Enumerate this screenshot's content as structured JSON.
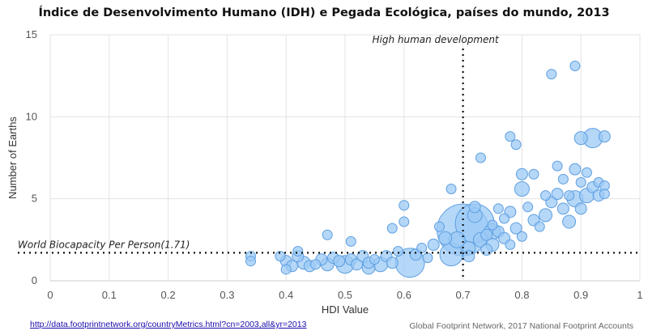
{
  "chart_data": {
    "type": "scatter",
    "title": "Índice de Desenvolvimento Humano (IDH) e Pegada Ecológica, países do mundo, 2013",
    "xlabel": "HDI Value",
    "ylabel": "Number of Earths",
    "xlim": [
      0,
      1
    ],
    "ylim": [
      0,
      15
    ],
    "x_ticks": [
      "0",
      "0.1",
      "0.2",
      "0.3",
      "0.4",
      "0.5",
      "0.6",
      "0.7",
      "0.8",
      "0.9",
      "1"
    ],
    "y_ticks": [
      "0",
      "5",
      "10",
      "15"
    ],
    "grid": true,
    "legend": "none",
    "bubble_color": "#9cc9f5",
    "bubble_edge": "#5e9fe0",
    "reference_lines": {
      "vertical": {
        "x": 0.7,
        "label": "High human development"
      },
      "horizontal": {
        "y": 1.71,
        "label": "World Biocapacity Per Person(1.71)"
      }
    },
    "points": [
      [
        0.34,
        1.5,
        6
      ],
      [
        0.34,
        1.2,
        6
      ],
      [
        0.39,
        1.5,
        6
      ],
      [
        0.4,
        0.7,
        6
      ],
      [
        0.4,
        1.2,
        7
      ],
      [
        0.41,
        0.9,
        7
      ],
      [
        0.42,
        1.5,
        7
      ],
      [
        0.42,
        1.8,
        6
      ],
      [
        0.43,
        1.1,
        8
      ],
      [
        0.44,
        0.9,
        7
      ],
      [
        0.45,
        1.0,
        6
      ],
      [
        0.46,
        1.3,
        7
      ],
      [
        0.47,
        1.0,
        8
      ],
      [
        0.47,
        2.8,
        6
      ],
      [
        0.48,
        1.4,
        7
      ],
      [
        0.49,
        1.2,
        7
      ],
      [
        0.5,
        1.0,
        11
      ],
      [
        0.51,
        1.3,
        7
      ],
      [
        0.51,
        2.4,
        6
      ],
      [
        0.52,
        1.0,
        7
      ],
      [
        0.53,
        1.5,
        7
      ],
      [
        0.54,
        1.1,
        7
      ],
      [
        0.54,
        0.8,
        8
      ],
      [
        0.55,
        1.3,
        6
      ],
      [
        0.56,
        1.0,
        9
      ],
      [
        0.57,
        1.5,
        7
      ],
      [
        0.58,
        1.1,
        7
      ],
      [
        0.58,
        3.2,
        6
      ],
      [
        0.59,
        1.8,
        6
      ],
      [
        0.6,
        3.6,
        6
      ],
      [
        0.6,
        4.6,
        6
      ],
      [
        0.61,
        1.1,
        18
      ],
      [
        0.62,
        1.6,
        7
      ],
      [
        0.63,
        2.0,
        6
      ],
      [
        0.64,
        1.4,
        6
      ],
      [
        0.65,
        2.2,
        7
      ],
      [
        0.66,
        3.3,
        6
      ],
      [
        0.67,
        2.6,
        8
      ],
      [
        0.68,
        5.6,
        6
      ],
      [
        0.68,
        1.6,
        14
      ],
      [
        0.69,
        2.5,
        10
      ],
      [
        0.7,
        3.1,
        32
      ],
      [
        0.71,
        2.0,
        8
      ],
      [
        0.71,
        1.5,
        7
      ],
      [
        0.72,
        4.0,
        9
      ],
      [
        0.72,
        3.5,
        24
      ],
      [
        0.73,
        7.5,
        6
      ],
      [
        0.73,
        2.5,
        9
      ],
      [
        0.74,
        2.8,
        7
      ],
      [
        0.74,
        1.9,
        7
      ],
      [
        0.75,
        3.4,
        6
      ],
      [
        0.75,
        2.2,
        8
      ],
      [
        0.76,
        3.0,
        7
      ],
      [
        0.76,
        4.4,
        6
      ],
      [
        0.77,
        2.6,
        7
      ],
      [
        0.77,
        3.8,
        6
      ],
      [
        0.78,
        2.2,
        6
      ],
      [
        0.78,
        4.2,
        7
      ],
      [
        0.78,
        8.8,
        6
      ],
      [
        0.79,
        8.3,
        6
      ],
      [
        0.79,
        3.2,
        7
      ],
      [
        0.8,
        2.7,
        6
      ],
      [
        0.8,
        5.6,
        9
      ],
      [
        0.8,
        6.5,
        7
      ],
      [
        0.81,
        4.5,
        6
      ],
      [
        0.82,
        3.7,
        7
      ],
      [
        0.82,
        6.5,
        6
      ],
      [
        0.83,
        3.3,
        6
      ],
      [
        0.84,
        5.2,
        6
      ],
      [
        0.84,
        4.0,
        8
      ],
      [
        0.85,
        4.8,
        7
      ],
      [
        0.85,
        12.6,
        6
      ],
      [
        0.86,
        7.0,
        6
      ],
      [
        0.86,
        5.3,
        7
      ],
      [
        0.87,
        6.2,
        6
      ],
      [
        0.87,
        4.4,
        7
      ],
      [
        0.88,
        5.2,
        6
      ],
      [
        0.88,
        3.6,
        8
      ],
      [
        0.89,
        13.1,
        6
      ],
      [
        0.89,
        6.8,
        7
      ],
      [
        0.89,
        5.0,
        10
      ],
      [
        0.9,
        6.0,
        6
      ],
      [
        0.9,
        4.4,
        7
      ],
      [
        0.9,
        8.7,
        8
      ],
      [
        0.91,
        5.2,
        9
      ],
      [
        0.91,
        6.6,
        6
      ],
      [
        0.92,
        8.7,
        12
      ],
      [
        0.92,
        5.7,
        7
      ],
      [
        0.93,
        6.0,
        6
      ],
      [
        0.93,
        5.2,
        7
      ],
      [
        0.94,
        8.8,
        7
      ],
      [
        0.94,
        5.8,
        6
      ],
      [
        0.94,
        5.3,
        6
      ],
      [
        0.75,
        3.0,
        10
      ],
      [
        0.72,
        4.5,
        7
      ]
    ]
  },
  "footer": {
    "source_link": "http://data.footprintnetwork.org/countryMetrics.html?cn=2003,all&yr=2013",
    "credit": "Global Footprint Network, 2017 National Footprint Accounts"
  }
}
